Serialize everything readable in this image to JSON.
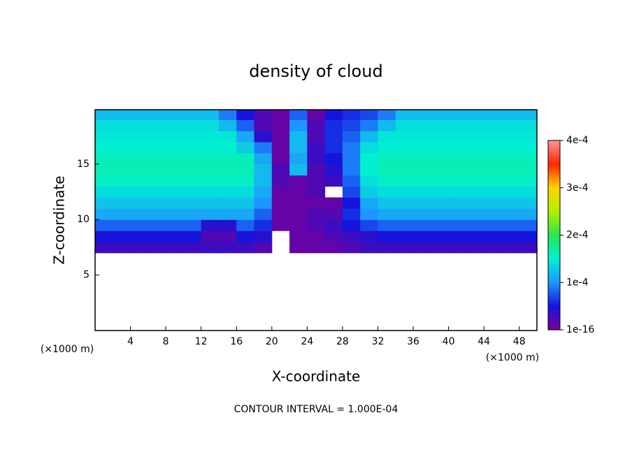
{
  "chart_data": {
    "type": "heatmap",
    "title": "density of cloud",
    "xlabel": "X-coordinate",
    "ylabel": "Z-coordinate",
    "xunit": "(×1000 m)",
    "yunit": "(×1000 m)",
    "note": "CONTOUR INTERVAL = 1.000E-04",
    "xlim": [
      0,
      50
    ],
    "ylim": [
      0,
      19.9
    ],
    "xticks": [
      4,
      8,
      12,
      16,
      20,
      24,
      28,
      32,
      36,
      40,
      44,
      48
    ],
    "yticks": [
      5,
      10,
      15
    ],
    "zlim": [
      1e-16,
      0.0004
    ],
    "zticks": [
      {
        "value": 1e-16,
        "label": "1e-16"
      },
      {
        "value": 0.0001,
        "label": "1e-4"
      },
      {
        "value": 0.0002,
        "label": "2e-4"
      },
      {
        "value": 0.0003,
        "label": "3e-4"
      },
      {
        "value": 0.0004,
        "label": "4e-4"
      }
    ],
    "colors": [
      "#78009b",
      "#1414dc",
      "#1e96ff",
      "#00f0d2",
      "#28e650",
      "#b4f000",
      "#ffd200",
      "#ff2800",
      "#ff9696"
    ],
    "x": [
      1,
      3,
      5,
      7,
      9,
      11,
      13,
      15,
      17,
      19,
      21,
      23,
      25,
      27,
      29,
      31,
      33,
      35,
      37,
      39,
      41,
      43,
      45,
      47,
      49
    ],
    "z": [
      7.5,
      8.5,
      9.5,
      10.5,
      11.5,
      12.5,
      13.5,
      14.5,
      15.5,
      16.5,
      17.5,
      18.5,
      19.5
    ],
    "values": [
      [
        3e-05,
        3e-05,
        3e-05,
        3e-05,
        3e-05,
        3e-05,
        3e-05,
        3e-05,
        3e-05,
        2e-05,
        null,
        1e-05,
        1e-05,
        1e-05,
        2e-05,
        3e-05,
        3e-05,
        3e-05,
        3e-05,
        3e-05,
        3e-05,
        3e-05,
        3e-05,
        3e-05,
        3e-05
      ],
      [
        5e-05,
        5e-05,
        5e-05,
        5e-05,
        5e-05,
        5e-05,
        2e-05,
        2e-05,
        5e-05,
        4e-05,
        null,
        1e-05,
        1e-05,
        2e-05,
        3e-05,
        4e-05,
        5e-05,
        5e-05,
        5e-05,
        5e-05,
        5e-05,
        5e-05,
        5e-05,
        5e-05,
        5e-05
      ],
      [
        8e-05,
        8e-05,
        8e-05,
        8e-05,
        8e-05,
        8e-05,
        4e-05,
        4e-05,
        8e-05,
        6e-05,
        1e-05,
        1e-05,
        2e-05,
        3e-05,
        5e-05,
        7e-05,
        8e-05,
        8e-05,
        8e-05,
        8e-05,
        8e-05,
        8e-05,
        8e-05,
        8e-05,
        8e-05
      ],
      [
        0.00011,
        0.00011,
        0.00011,
        0.00011,
        0.00011,
        0.00011,
        0.00011,
        0.00011,
        0.00011,
        8e-05,
        1e-05,
        1e-05,
        2e-05,
        2e-05,
        6e-05,
        0.0001,
        0.00011,
        0.00011,
        0.00011,
        0.00011,
        0.00011,
        0.00011,
        0.00011,
        0.00011,
        0.00011
      ],
      [
        0.000125,
        0.000125,
        0.000125,
        0.000125,
        0.000125,
        0.000125,
        0.000125,
        0.000125,
        0.000125,
        0.0001,
        1e-05,
        1e-05,
        1e-05,
        1e-05,
        5e-05,
        0.00011,
        0.000125,
        0.000125,
        0.000125,
        0.000125,
        0.000125,
        0.000125,
        0.000125,
        0.000125,
        0.000125
      ],
      [
        0.00014,
        0.00014,
        0.00014,
        0.00014,
        0.00014,
        0.00014,
        0.00014,
        0.00014,
        0.00014,
        0.00011,
        1e-05,
        1e-05,
        2e-05,
        null,
        7e-05,
        0.00013,
        0.00014,
        0.00014,
        0.00014,
        0.00014,
        0.00014,
        0.00014,
        0.00014,
        0.00014,
        0.00014
      ],
      [
        0.000155,
        0.000155,
        0.000155,
        0.000155,
        0.000155,
        0.000155,
        0.000155,
        0.000155,
        0.000155,
        0.00012,
        2e-05,
        1e-05,
        2e-05,
        3e-05,
        8e-05,
        0.00014,
        0.000155,
        0.000155,
        0.000155,
        0.000155,
        0.000155,
        0.000155,
        0.000155,
        0.000155,
        0.000155
      ],
      [
        0.00016,
        0.00016,
        0.00016,
        0.00016,
        0.00016,
        0.00016,
        0.00016,
        0.00016,
        0.00016,
        0.00012,
        2e-05,
        0.00012,
        2e-05,
        4e-05,
        9e-05,
        0.00015,
        0.00016,
        0.00016,
        0.00016,
        0.00016,
        0.00016,
        0.00016,
        0.00016,
        0.00016,
        0.00016
      ],
      [
        0.00016,
        0.00016,
        0.00016,
        0.00016,
        0.00016,
        0.00016,
        0.00016,
        0.00016,
        0.00016,
        0.00011,
        1e-05,
        0.00011,
        3e-05,
        5e-05,
        9e-05,
        0.00015,
        0.00016,
        0.00016,
        0.00016,
        0.00016,
        0.00016,
        0.00016,
        0.00016,
        0.00016,
        0.00016
      ],
      [
        0.00015,
        0.00015,
        0.00015,
        0.00015,
        0.00015,
        0.00015,
        0.00015,
        0.00015,
        0.00013,
        9e-05,
        1e-05,
        0.00012,
        3e-05,
        6e-05,
        9e-05,
        0.00014,
        0.00015,
        0.00015,
        0.00015,
        0.00015,
        0.00015,
        0.00015,
        0.00015,
        0.00015,
        0.00015
      ],
      [
        0.000145,
        0.000145,
        0.000145,
        0.000145,
        0.000145,
        0.000145,
        0.000145,
        0.000145,
        0.00011,
        4e-05,
        1e-05,
        0.00012,
        2e-05,
        6e-05,
        8e-05,
        0.00012,
        0.000145,
        0.000145,
        0.000145,
        0.000145,
        0.000145,
        0.000145,
        0.000145,
        0.000145,
        0.000145
      ],
      [
        0.00014,
        0.00014,
        0.00014,
        0.00014,
        0.00014,
        0.00014,
        0.00014,
        0.00012,
        8e-05,
        2e-05,
        1e-05,
        0.0001,
        2e-05,
        6e-05,
        7e-05,
        9e-05,
        0.00012,
        0.00014,
        0.00014,
        0.00014,
        0.00014,
        0.00014,
        0.00014,
        0.00014,
        0.00014
      ],
      [
        0.00012,
        0.00012,
        0.00012,
        0.00012,
        0.00012,
        0.00012,
        0.00012,
        9e-05,
        5e-05,
        2e-05,
        1e-05,
        8e-05,
        1e-05,
        5e-05,
        6e-05,
        7e-05,
        9e-05,
        0.00012,
        0.00012,
        0.00012,
        0.00012,
        0.00012,
        0.00012,
        0.00012,
        0.00012
      ]
    ]
  }
}
